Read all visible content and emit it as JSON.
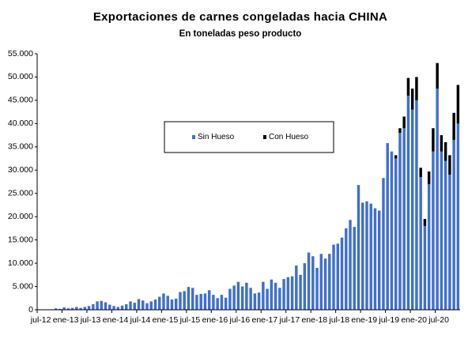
{
  "chart_data": {
    "type": "stacked_bar",
    "title": "Exportaciones de carnes congeladas hacia CHINA",
    "subtitle": "En toneladas peso producto",
    "categories": [
      "jul-12",
      null,
      null,
      null,
      null,
      null,
      "ene-13",
      null,
      null,
      null,
      null,
      null,
      "jul-13",
      null,
      null,
      null,
      null,
      null,
      "ene-14",
      null,
      null,
      null,
      null,
      null,
      "jul-14",
      null,
      null,
      null,
      null,
      null,
      "ene-15",
      null,
      null,
      null,
      null,
      null,
      "jul-15",
      null,
      null,
      null,
      null,
      null,
      "ene-16",
      null,
      null,
      null,
      null,
      null,
      "jul-16",
      null,
      null,
      null,
      null,
      null,
      "ene-17",
      null,
      null,
      null,
      null,
      null,
      "jul-17",
      null,
      null,
      null,
      null,
      null,
      "ene-18",
      null,
      null,
      null,
      null,
      null,
      "jul-18",
      null,
      null,
      null,
      null,
      null,
      "ene-19",
      null,
      null,
      null,
      null,
      null,
      "jul-19",
      null,
      null,
      null,
      null,
      null,
      "ene-20",
      null,
      null,
      null,
      null,
      null,
      "jul-20",
      null,
      null,
      null,
      null,
      null
    ],
    "series": [
      {
        "name": "Sin Hueso",
        "color": "#3f6fd0",
        "values": [
          0,
          0,
          0,
          100,
          300,
          200,
          500,
          300,
          400,
          600,
          400,
          600,
          800,
          1200,
          1800,
          1900,
          1600,
          1100,
          800,
          600,
          900,
          1200,
          1800,
          1500,
          2300,
          2000,
          1400,
          1800,
          2200,
          2800,
          3500,
          3000,
          2200,
          2400,
          3800,
          4000,
          4900,
          4700,
          3200,
          3400,
          3500,
          4200,
          3200,
          2500,
          3200,
          2600,
          4500,
          5200,
          6000,
          5000,
          5800,
          4700,
          3500,
          3700,
          6000,
          4500,
          6500,
          5800,
          4700,
          6600,
          7000,
          7200,
          9500,
          7500,
          10000,
          12300,
          11500,
          9000,
          12000,
          11000,
          12000,
          14000,
          14200,
          15500,
          17500,
          19300,
          17800,
          26800,
          23000,
          23300,
          22800,
          21800,
          21300,
          28300,
          35800,
          34000,
          32500,
          38000,
          39000,
          46000,
          43000,
          45000,
          28500,
          18000,
          27000,
          34000,
          47500,
          34000,
          32000,
          29000,
          36500,
          40000
        ]
      },
      {
        "name": "Con Hueso",
        "color": "#000000",
        "values": [
          0,
          0,
          0,
          0,
          0,
          0,
          0,
          0,
          0,
          0,
          0,
          0,
          0,
          0,
          0,
          0,
          0,
          0,
          0,
          0,
          0,
          0,
          0,
          0,
          0,
          0,
          0,
          0,
          0,
          0,
          0,
          0,
          0,
          0,
          0,
          0,
          0,
          0,
          0,
          0,
          0,
          0,
          0,
          0,
          0,
          0,
          0,
          0,
          0,
          0,
          0,
          0,
          0,
          0,
          0,
          0,
          0,
          0,
          0,
          0,
          0,
          0,
          0,
          0,
          0,
          0,
          0,
          0,
          0,
          0,
          0,
          0,
          0,
          0,
          0,
          0,
          0,
          0,
          0,
          0,
          0,
          0,
          0,
          0,
          0,
          0,
          700,
          1000,
          2500,
          3800,
          4500,
          5000,
          2000,
          1500,
          2700,
          5000,
          5500,
          3500,
          4000,
          4200,
          5800,
          8300
        ]
      }
    ],
    "ylim": [
      0,
      55000
    ],
    "yticks": [
      0,
      {
        "value": 5000,
        "label": "5.000"
      },
      {
        "value": 10000,
        "label": "10.000"
      },
      {
        "value": 15000,
        "label": "15.000"
      },
      {
        "value": 20000,
        "label": "20.000"
      },
      {
        "value": 25000,
        "label": "25.000"
      },
      {
        "value": 30000,
        "label": "30.000"
      },
      {
        "value": 35000,
        "label": "35.000"
      },
      {
        "value": 40000,
        "label": "40.000"
      },
      {
        "value": 45000,
        "label": "45.000"
      },
      {
        "value": 50000,
        "label": "50.000"
      },
      {
        "value": 55000,
        "label": "55.000"
      }
    ],
    "grid": false,
    "legend": "center"
  }
}
